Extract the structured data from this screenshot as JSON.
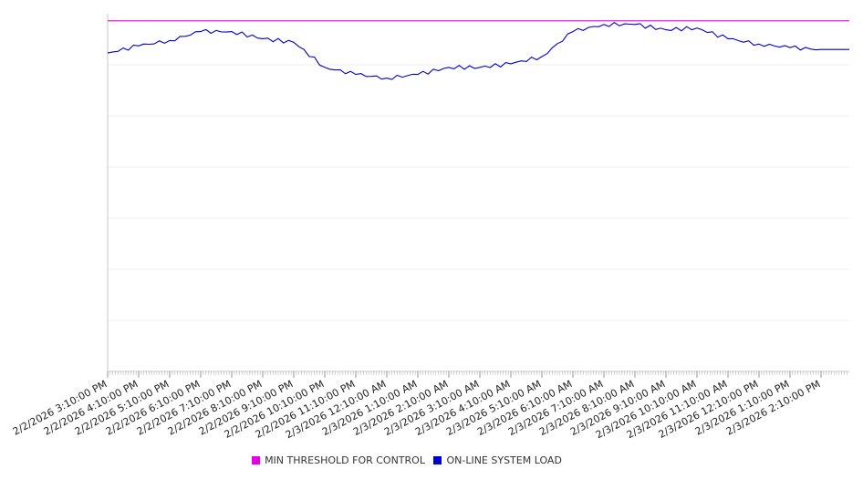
{
  "chart_data": {
    "type": "line",
    "title": "",
    "xlabel": "",
    "ylabel": "",
    "grid": true,
    "legend_position": "bottom-center",
    "x_tick_labels": [
      "2/2/2026 3:10:00 PM",
      "2/2/2026 4:10:00 PM",
      "2/2/2026 5:10:00 PM",
      "2/2/2026 6:10:00 PM",
      "2/2/2026 7:10:00 PM",
      "2/2/2026 8:10:00 PM",
      "2/2/2026 9:10:00 PM",
      "2/2/2026 10:10:00 PM",
      "2/2/2026 11:10:00 PM",
      "2/3/2026 12:10:00 AM",
      "2/3/2026 1:10:00 AM",
      "2/3/2026 2:10:00 AM",
      "2/3/2026 3:10:00 AM",
      "2/3/2026 4:10:00 AM",
      "2/3/2026 5:10:00 AM",
      "2/3/2026 6:10:00 AM",
      "2/3/2026 7:10:00 AM",
      "2/3/2026 8:10:00 AM",
      "2/3/2026 9:10:00 AM",
      "2/3/2026 10:10:00 AM",
      "2/3/2026 11:10:00 AM",
      "2/3/2026 12:10:00 PM",
      "2/3/2026 1:10:00 PM",
      "2/3/2026 2:10:00 PM"
    ],
    "ylim": [
      0,
      100
    ],
    "series": [
      {
        "name": "MIN THRESHOLD FOR CONTROL",
        "color": "#e600e6",
        "x": [
          "2/2/2026 3:10:00 PM",
          "2/3/2026 2:10:00 PM"
        ],
        "values": [
          98,
          98
        ]
      },
      {
        "name": "ON-LINE SYSTEM LOAD",
        "color": "#0000cc",
        "x": [
          "2/2/2026 3:10:00 PM",
          "2/2/2026 4:10:00 PM",
          "2/2/2026 5:10:00 PM",
          "2/2/2026 6:10:00 PM",
          "2/2/2026 7:10:00 PM",
          "2/2/2026 8:10:00 PM",
          "2/2/2026 9:10:00 PM",
          "2/2/2026 10:10:00 PM",
          "2/2/2026 11:10:00 PM",
          "2/3/2026 12:10:00 AM",
          "2/3/2026 1:10:00 AM",
          "2/3/2026 2:10:00 AM",
          "2/3/2026 3:10:00 AM",
          "2/3/2026 4:10:00 AM",
          "2/3/2026 5:10:00 AM",
          "2/3/2026 6:10:00 AM",
          "2/3/2026 7:10:00 AM",
          "2/3/2026 8:10:00 AM",
          "2/3/2026 9:10:00 AM",
          "2/3/2026 10:10:00 AM",
          "2/3/2026 11:10:00 AM",
          "2/3/2026 12:10:00 PM",
          "2/3/2026 1:10:00 PM",
          "2/3/2026 2:10:00 PM"
        ],
        "values": [
          89,
          91,
          92.5,
          95,
          95,
          93,
          92,
          85,
          83,
          82,
          83,
          85,
          85,
          86,
          88,
          95,
          97,
          97,
          95.5,
          96,
          93,
          91.5,
          90.5,
          90
        ]
      }
    ]
  },
  "legend": [
    {
      "label": "MIN THRESHOLD FOR CONTROL",
      "color": "#e600e6"
    },
    {
      "label": "ON-LINE SYSTEM LOAD",
      "color": "#0000cc"
    }
  ]
}
